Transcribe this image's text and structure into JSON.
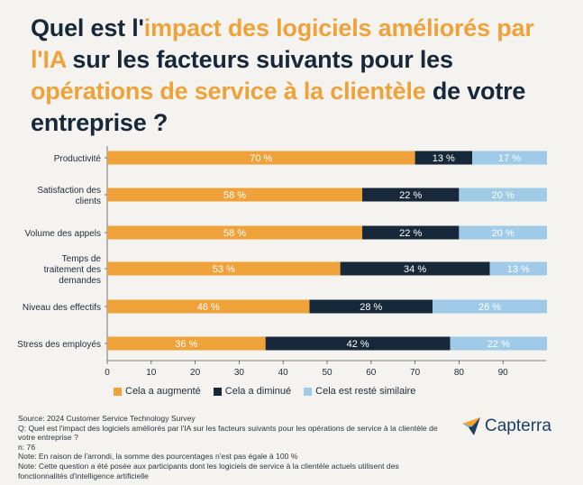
{
  "title": {
    "p1": "Quel est l'",
    "h1": "impact des logiciels améliorés par l'IA",
    "p2": " sur les facteurs suivants pour les ",
    "h2": "opérations de service à la clientèle",
    "p3": " de votre entreprise ?"
  },
  "colors": {
    "augmente": "#f0a23a",
    "diminue": "#17283a",
    "similaire": "#9fcbe8",
    "highlight": "#f0a23a",
    "capterra_orange": "#ff9d28",
    "capterra_blue": "#1d3f66"
  },
  "chart_data": {
    "type": "bar",
    "orientation": "horizontal",
    "stacked": true,
    "categories": [
      [
        "Productivité"
      ],
      [
        "Satisfaction des",
        "clients"
      ],
      [
        "Volume des appels"
      ],
      [
        "Temps de",
        "traitement des",
        "demandes"
      ],
      [
        "Niveau des effectifs"
      ],
      [
        "Stress des employés"
      ]
    ],
    "series": [
      {
        "name": "Cela a augmenté",
        "values": [
          70,
          58,
          58,
          53,
          46,
          36
        ],
        "labels": [
          "70 %",
          "58 %",
          "58 %",
          "53 %",
          "46 %",
          "36 %"
        ]
      },
      {
        "name": "Cela a diminué",
        "values": [
          13,
          22,
          22,
          34,
          28,
          42
        ],
        "labels": [
          "13 %",
          "22 %",
          "22 %",
          "34 %",
          "28 %",
          "42 %"
        ]
      },
      {
        "name": "Cela est resté similaire",
        "values": [
          17,
          20,
          20,
          13,
          26,
          22
        ],
        "labels": [
          "17 %",
          "20 %",
          "20 %",
          "13 %",
          "26 %",
          "22 %"
        ]
      }
    ],
    "xlim": [
      0,
      100
    ],
    "xticks": [
      0,
      10,
      20,
      30,
      40,
      50,
      60,
      70,
      80,
      90
    ],
    "legend_position": "bottom"
  },
  "legend": {
    "augmente": "Cela a augmenté",
    "diminue": "Cela a diminué",
    "similaire": "Cela est resté similaire"
  },
  "notes": [
    "Source: 2024 Customer Service Technology Survey",
    "Q: Quel est l'impact des logiciels améliorés par l'IA sur les facteurs suivants pour les opérations de service à la clientèle de votre entreprise ?",
    "n: 76",
    "Note: En raison de l'arrondi, la somme des pourcentages n'est pas égale à 100 %",
    "Note: Cette question a été posée aux participants dont les logiciels de service à la clientèle actuels utilisent des fonctionnalités d'intelligence artificielle"
  ],
  "logo": {
    "text": "Capterra",
    "icon": "capterra-arrow-icon"
  }
}
